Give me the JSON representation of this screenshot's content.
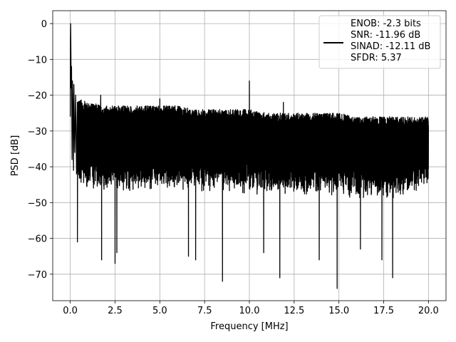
{
  "chart_data": {
    "type": "line",
    "title": "",
    "xlabel": "Frequency [MHz]",
    "ylabel": "PSD [dB]",
    "xlim": [
      -0.98,
      20.98
    ],
    "ylim": [
      -77.4,
      3.6
    ],
    "xticks": [
      0.0,
      2.5,
      5.0,
      7.5,
      10.0,
      12.5,
      15.0,
      17.5,
      20.0
    ],
    "xtick_labels": [
      "0.0",
      "2.5",
      "5.0",
      "7.5",
      "10.0",
      "12.5",
      "15.0",
      "17.5",
      "20.0"
    ],
    "yticks": [
      0,
      -10,
      -20,
      -30,
      -40,
      -50,
      -60,
      -70
    ],
    "ytick_labels": [
      "0",
      "−10",
      "−20",
      "−30",
      "−40",
      "−50",
      "−60",
      "−70"
    ],
    "grid": true,
    "legend_position": "top-right",
    "line_color": "#000000",
    "series": [
      {
        "noise_band_top": [
          [
            0.4,
            -21
          ],
          [
            1.0,
            -22
          ],
          [
            2.0,
            -23
          ],
          [
            3.0,
            -23
          ],
          [
            4.0,
            -23
          ],
          [
            5.0,
            -23
          ],
          [
            6.0,
            -23
          ],
          [
            7.0,
            -24
          ],
          [
            8.0,
            -24
          ],
          [
            9.0,
            -24
          ],
          [
            10.0,
            -24
          ],
          [
            11.0,
            -25
          ],
          [
            12.0,
            -25
          ],
          [
            13.0,
            -25
          ],
          [
            14.0,
            -25
          ],
          [
            15.0,
            -25
          ],
          [
            16.0,
            -26
          ],
          [
            17.0,
            -26
          ],
          [
            18.0,
            -26
          ],
          [
            19.0,
            -26
          ],
          [
            20.0,
            -26
          ]
        ],
        "noise_band_bottom": [
          [
            0.4,
            -46
          ],
          [
            1.0,
            -47
          ],
          [
            2.0,
            -47
          ],
          [
            3.0,
            -47
          ],
          [
            4.0,
            -47
          ],
          [
            5.0,
            -47
          ],
          [
            6.0,
            -47
          ],
          [
            7.0,
            -47
          ],
          [
            8.0,
            -47
          ],
          [
            9.0,
            -48
          ],
          [
            10.0,
            -48
          ],
          [
            11.0,
            -48
          ],
          [
            12.0,
            -48
          ],
          [
            13.0,
            -48
          ],
          [
            14.0,
            -48
          ],
          [
            15.0,
            -48
          ],
          [
            16.0,
            -49
          ],
          [
            17.0,
            -49
          ],
          [
            18.0,
            -49
          ],
          [
            19.0,
            -48
          ],
          [
            20.0,
            -45
          ]
        ],
        "dc_region": [
          [
            0.0,
            -26
          ],
          [
            0.01,
            -5
          ],
          [
            0.02,
            0
          ],
          [
            0.03,
            -5
          ],
          [
            0.05,
            -18
          ],
          [
            0.07,
            -12
          ],
          [
            0.1,
            -38
          ],
          [
            0.12,
            -16
          ],
          [
            0.15,
            -24
          ],
          [
            0.18,
            -41
          ],
          [
            0.2,
            -17
          ],
          [
            0.25,
            -36
          ],
          [
            0.3,
            -20
          ],
          [
            0.35,
            -42
          ],
          [
            0.4,
            -22
          ]
        ],
        "spurs": [
          [
            1.7,
            -20
          ],
          [
            5.0,
            -21
          ],
          [
            10.0,
            -16
          ],
          [
            11.9,
            -22
          ]
        ],
        "dips": [
          [
            0.4,
            -61
          ],
          [
            1.75,
            -66
          ],
          [
            2.5,
            -67
          ],
          [
            2.6,
            -64
          ],
          [
            6.6,
            -65
          ],
          [
            7.0,
            -66
          ],
          [
            8.5,
            -72
          ],
          [
            10.8,
            -64
          ],
          [
            11.7,
            -71
          ],
          [
            13.9,
            -66
          ],
          [
            14.9,
            -74
          ],
          [
            16.2,
            -63
          ],
          [
            17.4,
            -66
          ],
          [
            18.0,
            -71
          ]
        ]
      }
    ],
    "legend": {
      "lines": [
        "ENOB: -2.3 bits",
        "SNR: -11.96 dB",
        "SINAD: -12.11 dB",
        "SFDR: 5.37"
      ]
    }
  }
}
